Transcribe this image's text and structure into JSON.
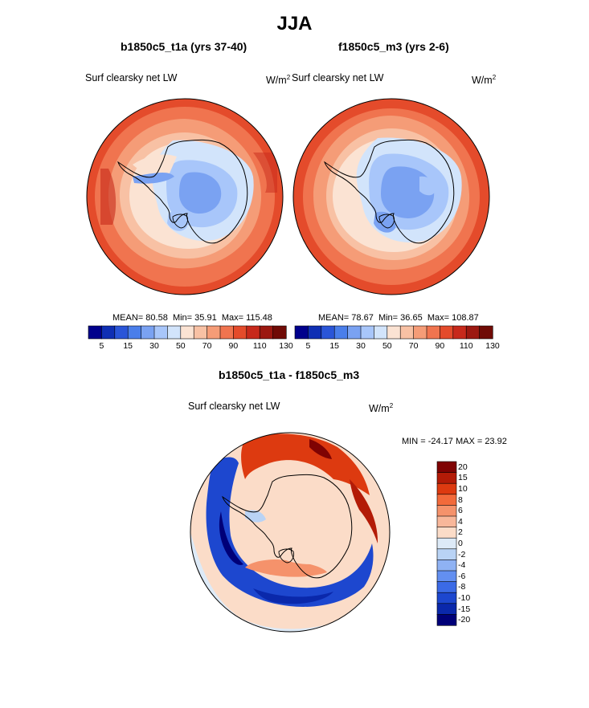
{
  "page": {
    "season": "JJA",
    "variable_label": "Surf clearsky net LW",
    "units_base": "W/m",
    "units_exp": "2"
  },
  "panels": [
    {
      "title": "b1850c5_t1a (yrs 37-40)",
      "stats": {
        "mean_label": "MEAN=",
        "mean": "80.58",
        "min_label": "Min=",
        "min": "35.91",
        "max_label": "Max=",
        "max": "115.48"
      }
    },
    {
      "title": "f1850c5_m3 (yrs 2-6)",
      "stats": {
        "mean_label": "MEAN=",
        "mean": "78.67",
        "min_label": "Min=",
        "min": "36.65",
        "max_label": "Max=",
        "max": "108.87"
      }
    },
    {
      "title": "b1850c5_t1a - f1850c5_m3",
      "stats": {
        "text": "MIN = -24.17 MAX =  23.92"
      }
    }
  ],
  "colors": {
    "abs_scale": [
      "#00008c",
      "#0f2fb4",
      "#2a55d8",
      "#4a7eea",
      "#7aa2f2",
      "#a8c6fa",
      "#d2e4fb",
      "#fbe3d3",
      "#f8c1a4",
      "#f59c77",
      "#f0744f",
      "#e44b2b",
      "#c7291b",
      "#9c1810",
      "#700b06"
    ],
    "diff_scale": [
      "#7f0303",
      "#b31b07",
      "#dd3a10",
      "#f26a3b",
      "#f5926b",
      "#f8b79a",
      "#fbdcc8",
      "#ddeaf7",
      "#b9d3f5",
      "#8fb2f3",
      "#638ff0",
      "#3b6ae6",
      "#1d47cf",
      "#0a28ab",
      "#000078"
    ]
  },
  "chart_data": [
    {
      "type": "heatmap",
      "subtype": "polar-stereographic contour map",
      "title": "b1850c5_t1a (yrs 37-40)",
      "variable": "Surf clearsky net LW",
      "units": "W/m2",
      "colorbar": {
        "orientation": "horizontal",
        "tick_labels": [
          "5",
          "15",
          "30",
          "50",
          "70",
          "90",
          "110",
          "130"
        ],
        "levels": [
          5,
          10,
          15,
          20,
          30,
          40,
          50,
          60,
          70,
          80,
          90,
          100,
          110,
          120,
          130
        ]
      },
      "stats": {
        "mean": 80.58,
        "min": 35.91,
        "max": 115.48
      }
    },
    {
      "type": "heatmap",
      "subtype": "polar-stereographic contour map",
      "title": "f1850c5_m3 (yrs 2-6)",
      "variable": "Surf clearsky net LW",
      "units": "W/m2",
      "colorbar": {
        "orientation": "horizontal",
        "tick_labels": [
          "5",
          "15",
          "30",
          "50",
          "70",
          "90",
          "110",
          "130"
        ],
        "levels": [
          5,
          10,
          15,
          20,
          30,
          40,
          50,
          60,
          70,
          80,
          90,
          100,
          110,
          120,
          130
        ]
      },
      "stats": {
        "mean": 78.67,
        "min": 36.65,
        "max": 108.87
      }
    },
    {
      "type": "heatmap",
      "subtype": "polar-stereographic difference map",
      "title": "b1850c5_t1a - f1850c5_m3",
      "variable": "Surf clearsky net LW",
      "units": "W/m2",
      "colorbar": {
        "orientation": "vertical",
        "tick_labels": [
          "20",
          "15",
          "10",
          "8",
          "6",
          "4",
          "2",
          "0",
          "-2",
          "-4",
          "-6",
          "-8",
          "-10",
          "-15",
          "-20"
        ]
      },
      "stats": {
        "min": -24.17,
        "max": 23.92
      }
    }
  ]
}
